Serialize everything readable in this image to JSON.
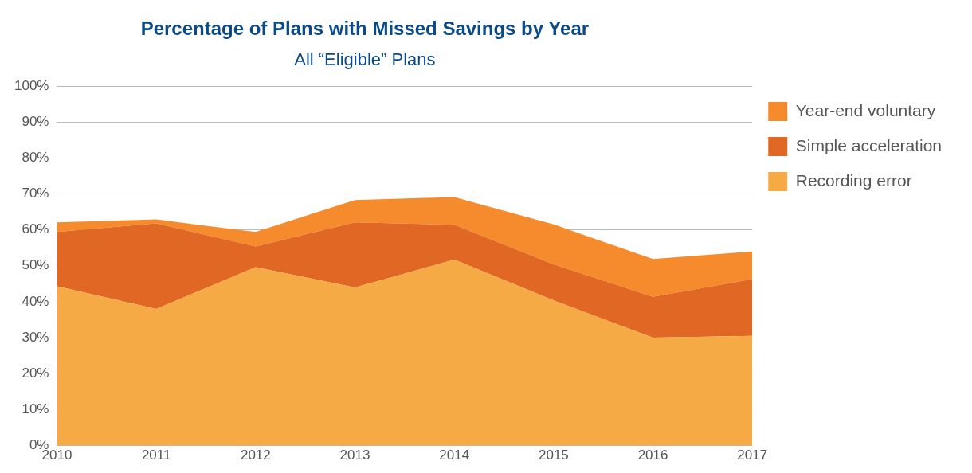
{
  "chart_data": {
    "type": "area",
    "title": "Percentage of Plans with Missed Savings by Year",
    "subtitle": "All “Eligible” Plans",
    "x": [
      2010,
      2011,
      2012,
      2013,
      2014,
      2015,
      2016,
      2017
    ],
    "stacked": true,
    "series": [
      {
        "name": "Recording error",
        "color": "#f5aa45",
        "values": [
          44.3,
          38.0,
          49.6,
          44.0,
          51.7,
          40.4,
          30.0,
          30.5
        ]
      },
      {
        "name": "Simple acceleration",
        "color": "#e16724",
        "values": [
          15.1,
          23.8,
          5.8,
          18.1,
          9.7,
          10.0,
          11.4,
          15.8
        ]
      },
      {
        "name": "Year-end voluntary",
        "color": "#f58b2d",
        "values": [
          2.7,
          1.1,
          4.0,
          6.2,
          7.7,
          11.1,
          10.5,
          7.7
        ]
      }
    ],
    "xlim": [
      2010,
      2017
    ],
    "xticks": [
      2010,
      2011,
      2012,
      2013,
      2014,
      2015,
      2016,
      2017
    ],
    "ylim": [
      0,
      100
    ],
    "yticks": [
      {
        "value": 0,
        "label": "0%"
      },
      {
        "value": 10,
        "label": "10%"
      },
      {
        "value": 20,
        "label": "20%"
      },
      {
        "value": 30,
        "label": "30%"
      },
      {
        "value": 40,
        "label": "40%"
      },
      {
        "value": 50,
        "label": "50%"
      },
      {
        "value": 60,
        "label": "60%"
      },
      {
        "value": 70,
        "label": "70%"
      },
      {
        "value": 80,
        "label": "80%"
      },
      {
        "value": 90,
        "label": "90%"
      },
      {
        "value": 100,
        "label": "100%"
      }
    ],
    "grid": "y",
    "legend": "right"
  }
}
